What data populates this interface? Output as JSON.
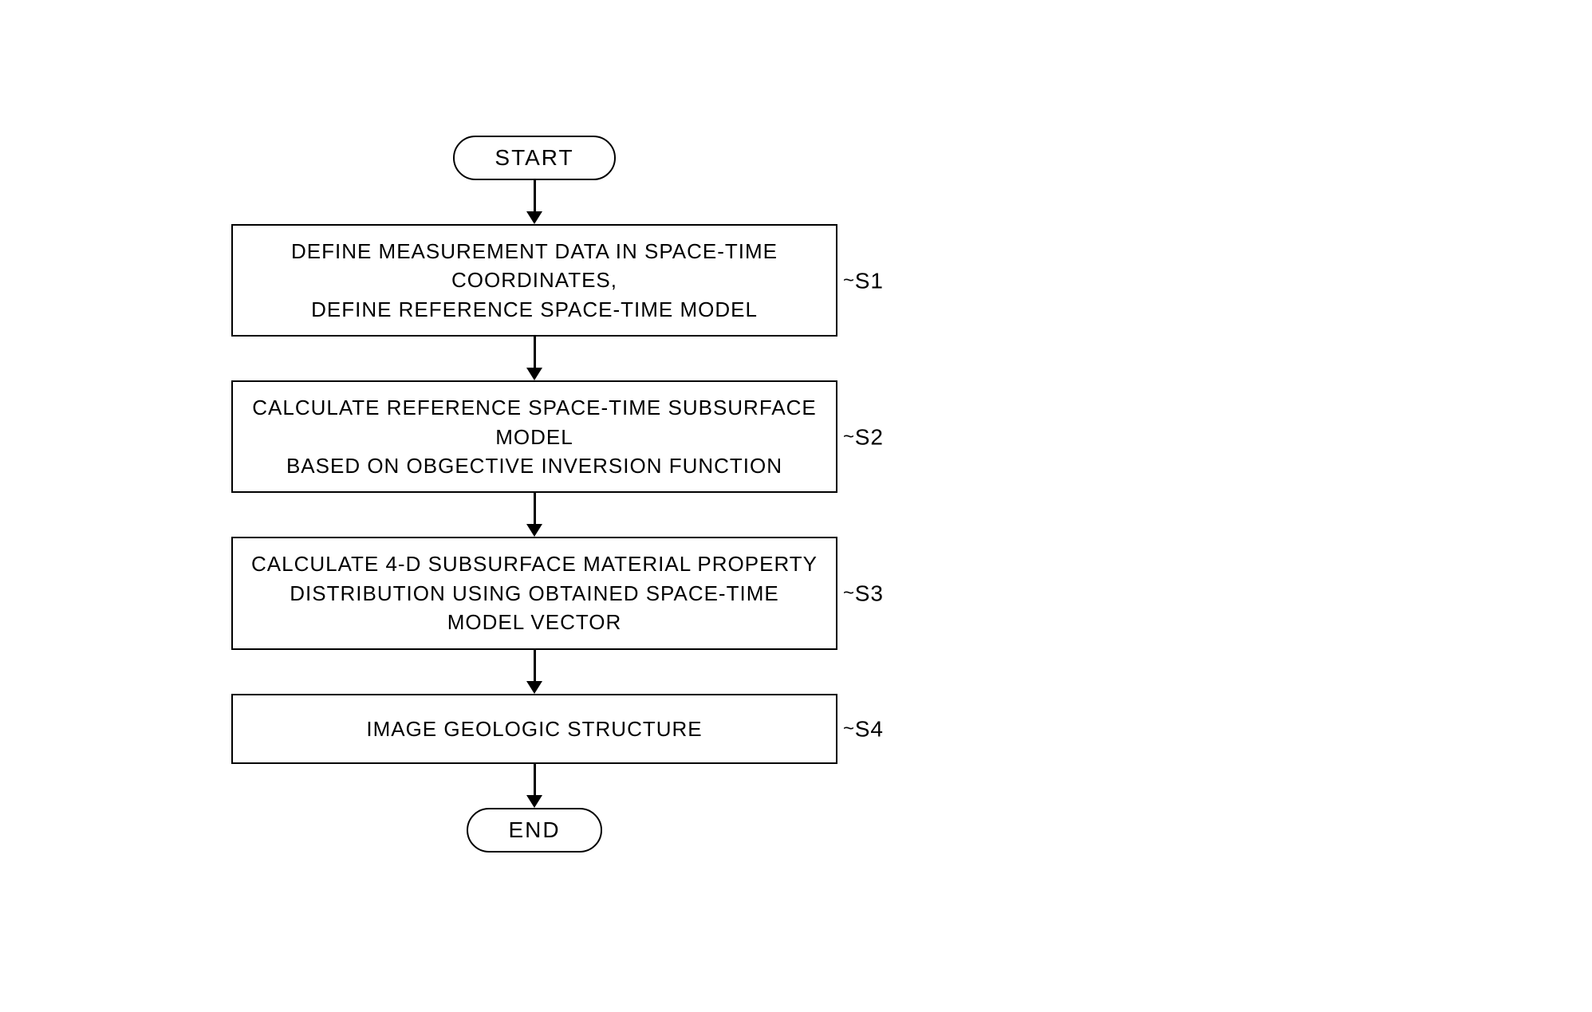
{
  "flowchart": {
    "type": "flowchart",
    "background_color": "#ffffff",
    "stroke_color": "#000000",
    "font_family": "condensed-serif",
    "font_size": 26,
    "letter_spacing": 1,
    "terminal": {
      "start": "START",
      "end": "END",
      "border_radius": 30
    },
    "steps": [
      {
        "id": "S1",
        "label": "S1",
        "line1": "DEFINE MEASUREMENT DATA IN SPACE-TIME COORDINATES,",
        "line2": "DEFINE REFERENCE SPACE-TIME MODEL"
      },
      {
        "id": "S2",
        "label": "S2",
        "line1": "CALCULATE REFERENCE SPACE-TIME SUBSURFACE MODEL",
        "line2": "BASED ON OBGECTIVE INVERSION FUNCTION"
      },
      {
        "id": "S3",
        "label": "S3",
        "line1": "CALCULATE 4-D SUBSURFACE MATERIAL PROPERTY",
        "line2": "DISTRIBUTION USING OBTAINED SPACE-TIME MODEL VECTOR"
      },
      {
        "id": "S4",
        "label": "S4",
        "line1": "IMAGE GEOLOGIC STRUCTURE",
        "line2": ""
      }
    ],
    "arrow": {
      "line_width": 3,
      "head_width": 20,
      "head_height": 16,
      "segment_height": 55
    }
  }
}
